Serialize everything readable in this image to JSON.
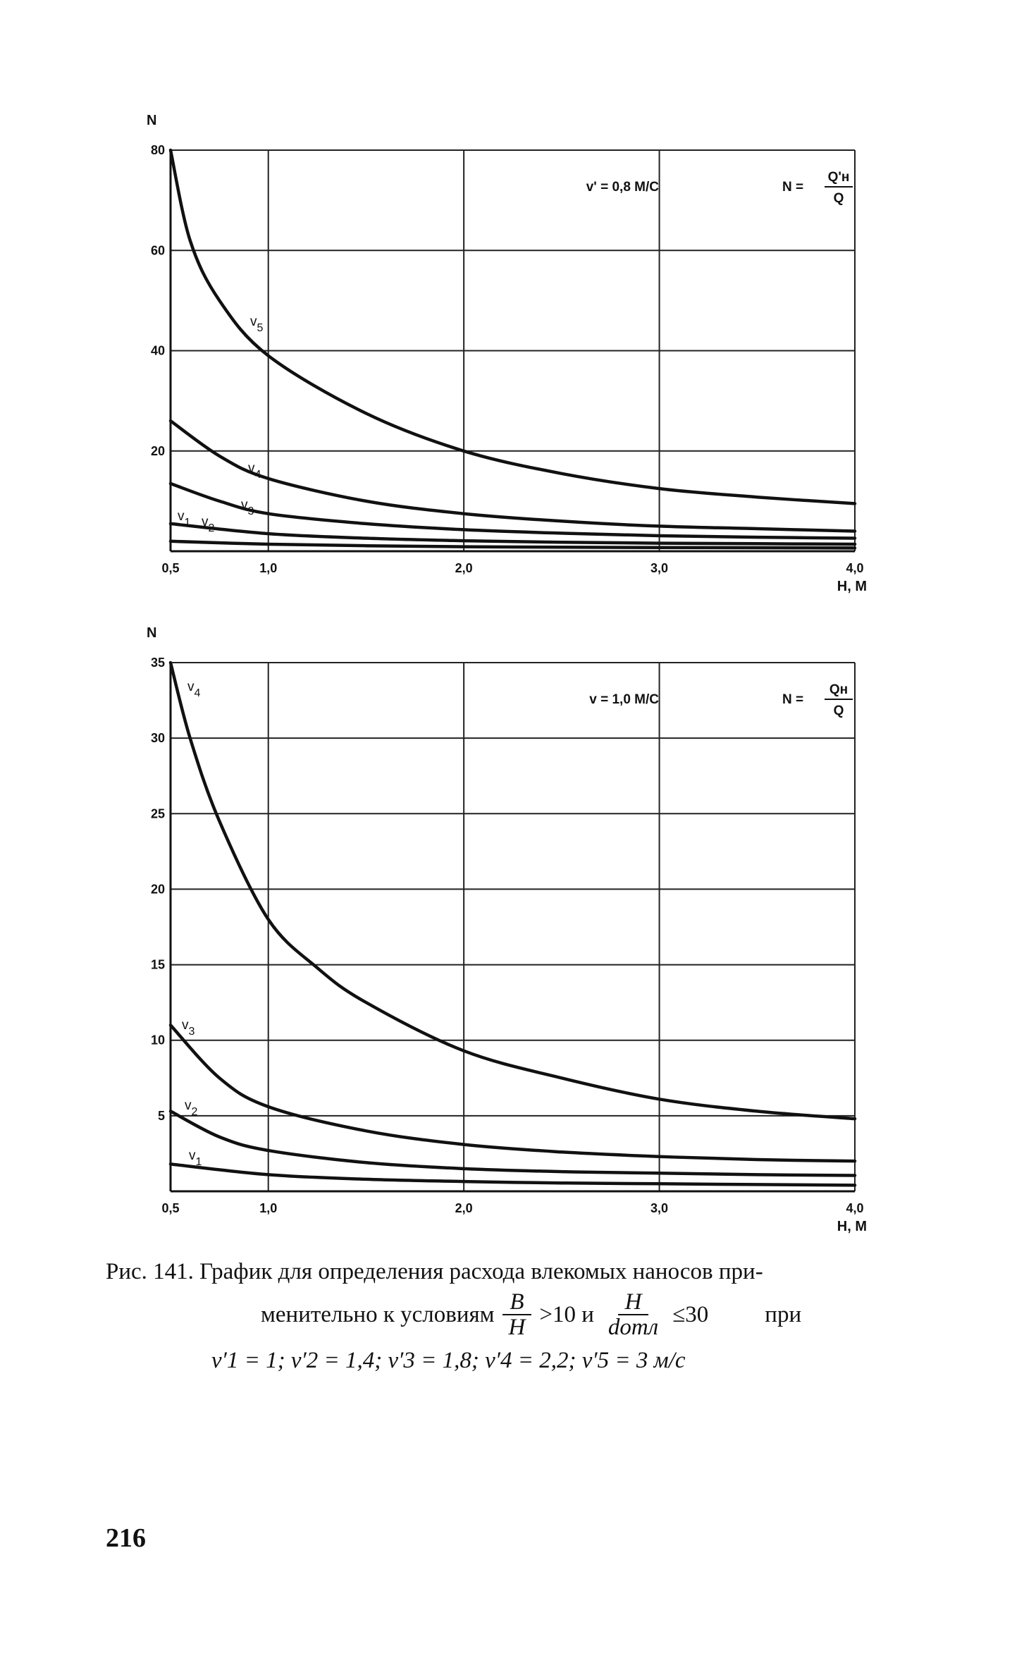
{
  "chart_data": [
    {
      "type": "line",
      "xlabel": "H, M",
      "ylabel": "N",
      "xlim": [
        0.5,
        4.0
      ],
      "ylim": [
        0,
        80
      ],
      "x_ticks": [
        "0,5",
        "1,0",
        "2,0",
        "3,0",
        "4,0"
      ],
      "x_tick_values": [
        0.5,
        1.0,
        2.0,
        3.0,
        4.0
      ],
      "y_ticks": [
        "20",
        "40",
        "60",
        "80"
      ],
      "y_tick_values": [
        20,
        40,
        60,
        80
      ],
      "grid": true,
      "annotations": {
        "velocity": "v' = 0,8 M/C",
        "formula_lhs": "N =",
        "formula_num": "Q'н",
        "formula_den": "Q"
      },
      "series": [
        {
          "name": "v5",
          "x": [
            0.5,
            0.6,
            0.75,
            1.0,
            1.5,
            2.0,
            2.5,
            3.0,
            3.5,
            4.0
          ],
          "values": [
            80,
            62,
            50,
            39,
            27.5,
            20,
            15.5,
            12.5,
            10.8,
            9.5
          ]
        },
        {
          "name": "v4",
          "x": [
            0.5,
            0.75,
            1.0,
            1.5,
            2.0,
            2.5,
            3.0,
            3.5,
            4.0
          ],
          "values": [
            26,
            19,
            14.5,
            10,
            7.5,
            6,
            5,
            4.5,
            4
          ]
        },
        {
          "name": "v3",
          "x": [
            0.5,
            0.75,
            1.0,
            1.5,
            2.0,
            2.5,
            3.0,
            3.5,
            4.0
          ],
          "values": [
            13.5,
            10,
            7.5,
            5.5,
            4.3,
            3.6,
            3.1,
            2.8,
            2.6
          ]
        },
        {
          "name": "v2",
          "x": [
            0.5,
            1.0,
            1.5,
            2.0,
            2.5,
            3.0,
            3.5,
            4.0
          ],
          "values": [
            5.5,
            3.5,
            2.6,
            2.1,
            1.8,
            1.6,
            1.5,
            1.4
          ]
        },
        {
          "name": "v1",
          "x": [
            0.5,
            1.0,
            1.5,
            2.0,
            2.5,
            3.0,
            3.5,
            4.0
          ],
          "values": [
            2,
            1.4,
            1.1,
            0.9,
            0.8,
            0.75,
            0.7,
            0.65
          ]
        }
      ]
    },
    {
      "type": "line",
      "xlabel": "H, M",
      "ylabel": "N",
      "xlim": [
        0.5,
        4.0
      ],
      "ylim": [
        0,
        35
      ],
      "x_ticks": [
        "0,5",
        "1,0",
        "2,0",
        "3,0",
        "4,0"
      ],
      "x_tick_values": [
        0.5,
        1.0,
        2.0,
        3.0,
        4.0
      ],
      "y_ticks": [
        "5",
        "10",
        "15",
        "20",
        "25",
        "30",
        "35"
      ],
      "y_tick_values": [
        5,
        10,
        15,
        20,
        25,
        30,
        35
      ],
      "grid": true,
      "annotations": {
        "velocity": "v = 1,0 M/C",
        "formula_lhs": "N =",
        "formula_num": "Qн",
        "formula_den": "Q"
      },
      "series": [
        {
          "name": "v4",
          "x": [
            0.5,
            0.6,
            0.75,
            1.0,
            1.25,
            1.5,
            2.0,
            2.5,
            3.0,
            3.5,
            4.0
          ],
          "values": [
            35,
            30,
            24.5,
            18,
            14.8,
            12.5,
            9.3,
            7.5,
            6.1,
            5.3,
            4.8
          ]
        },
        {
          "name": "v3",
          "x": [
            0.5,
            0.75,
            1.0,
            1.5,
            2.0,
            2.5,
            3.0,
            3.5,
            4.0
          ],
          "values": [
            11,
            7.5,
            5.6,
            4,
            3.1,
            2.6,
            2.3,
            2.1,
            2.0
          ]
        },
        {
          "name": "v2",
          "x": [
            0.5,
            0.75,
            1.0,
            1.5,
            2.0,
            2.5,
            3.0,
            3.5,
            4.0
          ],
          "values": [
            5.3,
            3.6,
            2.7,
            1.9,
            1.5,
            1.3,
            1.2,
            1.1,
            1.05
          ]
        },
        {
          "name": "v1",
          "x": [
            0.5,
            1.0,
            1.5,
            2.0,
            2.5,
            3.0,
            3.5,
            4.0
          ],
          "values": [
            1.8,
            1.1,
            0.8,
            0.65,
            0.55,
            0.5,
            0.45,
            0.4
          ]
        }
      ]
    }
  ],
  "caption": {
    "line1": "Рис. 141. График для определения расхода влекомых наносов при-",
    "line2_prefix": "менительно к условиям",
    "frac1_num": "B",
    "frac1_den": "H",
    "cond1": ">10 и",
    "frac2_num": "H",
    "frac2_den": "dотл",
    "cond2": "≤30",
    "line2_suffix": "при",
    "line3": "v′1 = 1;  v′2 = 1,4;  v′3 = 1,8;  v′4 = 2,2;  v′5 = 3 м/с"
  },
  "page_number": "216"
}
